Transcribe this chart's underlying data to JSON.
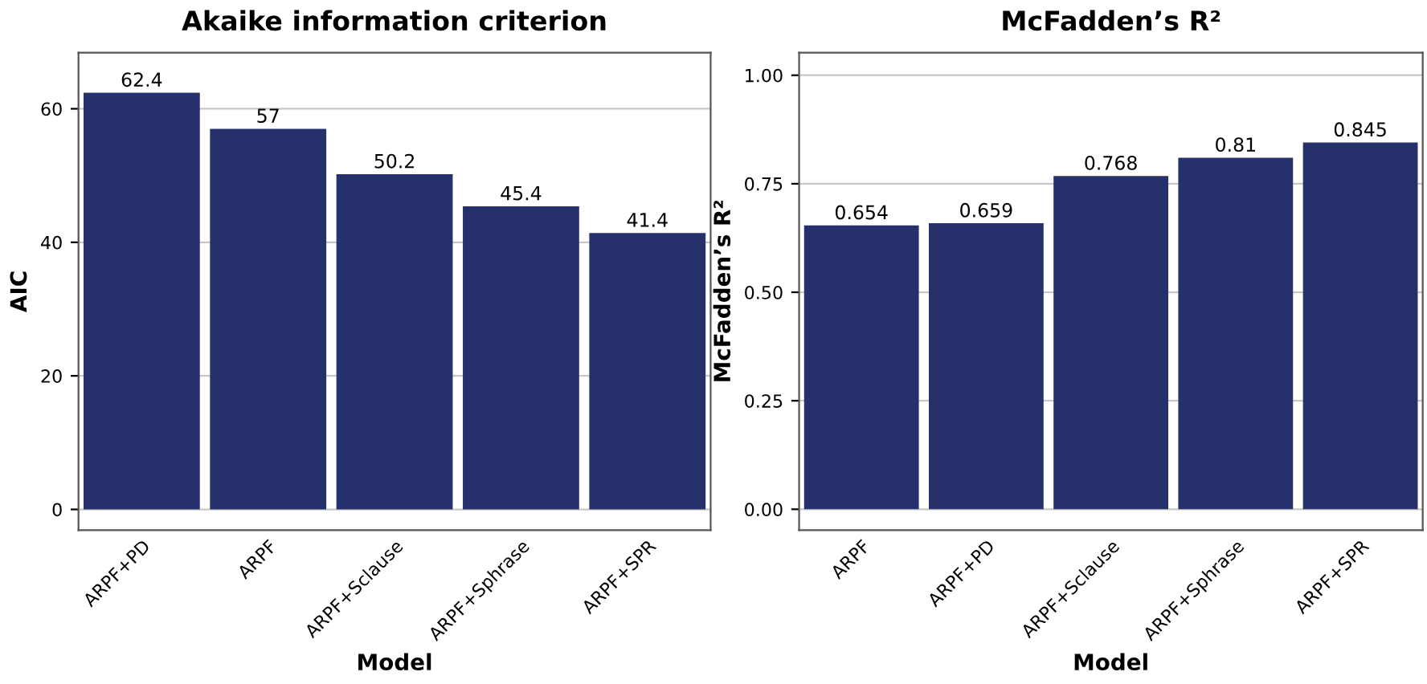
{
  "chart_data": [
    {
      "type": "bar",
      "title": "Akaike information criterion",
      "xlabel": "Model",
      "ylabel": "AIC",
      "categories": [
        "ARPF+PD",
        "ARPF",
        "ARPF+Sclause",
        "ARPF+Sphrase",
        "ARPF+SPR"
      ],
      "values": [
        62.4,
        57,
        50.2,
        45.4,
        41.4
      ],
      "color": "#26306b",
      "ylim": [
        -3.1,
        68.4
      ],
      "yticks": [
        0,
        20,
        40,
        60
      ],
      "grid": "y",
      "data_labels": true
    },
    {
      "type": "bar",
      "title": "McFadden’s R²",
      "xlabel": "Model",
      "ylabel": "McFadden’s R²",
      "categories": [
        "ARPF",
        "ARPF+PD",
        "ARPF+Sclause",
        "ARPF+Sphrase",
        "ARPF+SPR"
      ],
      "values": [
        0.654,
        0.659,
        0.768,
        0.81,
        0.845
      ],
      "color": "#26306b",
      "ylim": [
        -0.048,
        1.052
      ],
      "yticks": [
        {
          "value": 0,
          "label": "0.00"
        },
        {
          "value": 0.25,
          "label": "0.25"
        },
        {
          "value": 0.5,
          "label": "0.50"
        },
        {
          "value": 0.75,
          "label": "0.75"
        },
        {
          "value": 1,
          "label": "1.00"
        }
      ],
      "grid": "y",
      "data_labels": true
    }
  ]
}
